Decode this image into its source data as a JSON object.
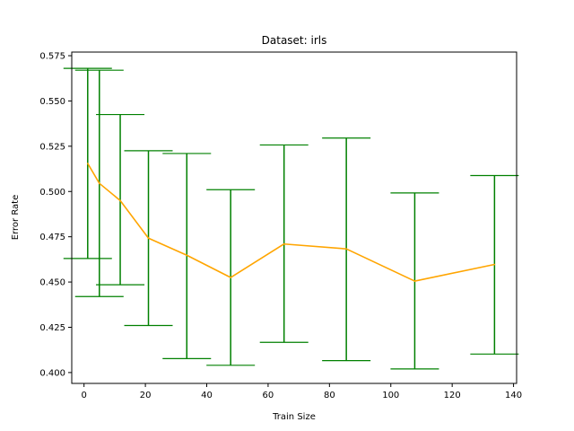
{
  "chart_data": {
    "type": "line",
    "title": "Dataset: irls",
    "xlabel": "Train Size",
    "ylabel": "Error Rate",
    "xlim": [
      -4,
      141
    ],
    "ylim": [
      0.394,
      0.577
    ],
    "xticks": [
      0,
      20,
      40,
      60,
      80,
      100,
      120,
      140
    ],
    "yticks": [
      0.4,
      0.425,
      0.45,
      0.475,
      0.5,
      0.525,
      0.55,
      0.575
    ],
    "ytick_labels": [
      "0.400",
      "0.425",
      "0.450",
      "0.475",
      "0.500",
      "0.525",
      "0.550",
      "0.575"
    ],
    "grid": false,
    "series": [
      {
        "color": "#ffa500",
        "error_bar_color": "#008000",
        "x": [
          1.2,
          5.0,
          11.8,
          21.0,
          33.5,
          47.8,
          65.2,
          85.5,
          107.8,
          133.8
        ],
        "y": [
          0.5155,
          0.5045,
          0.495,
          0.4742,
          0.4648,
          0.4525,
          0.471,
          0.4683,
          0.4505,
          0.4597
        ],
        "y_lower": [
          0.463,
          0.442,
          0.4485,
          0.426,
          0.4077,
          0.404,
          0.4167,
          0.4066,
          0.402,
          0.4102
        ],
        "y_upper": [
          0.568,
          0.567,
          0.5425,
          0.5225,
          0.521,
          0.501,
          0.5257,
          0.5295,
          0.4992,
          0.5088
        ]
      }
    ]
  }
}
